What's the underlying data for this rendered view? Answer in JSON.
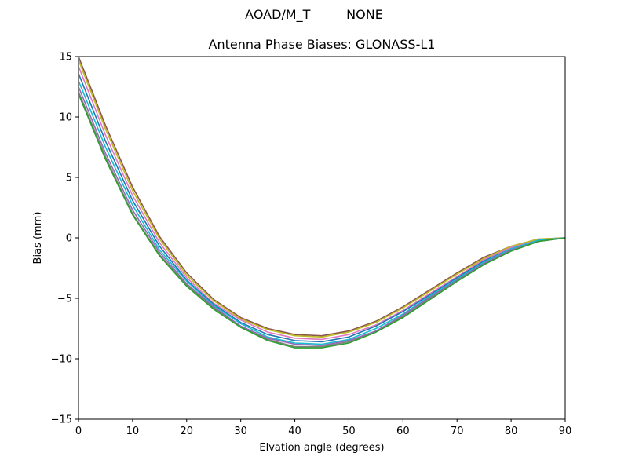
{
  "header": {
    "suptitle_left": "AOAD/M_T",
    "suptitle_right": "NONE",
    "title": "Antenna Phase Biases: GLONASS-L1"
  },
  "chart_data": {
    "type": "line",
    "title": "Antenna Phase Biases: GLONASS-L1",
    "xlabel": "Elvation angle (degrees)",
    "ylabel": "Bias (mm)",
    "xlim": [
      0,
      90
    ],
    "ylim": [
      -15,
      15
    ],
    "xticks": [
      0,
      10,
      20,
      30,
      40,
      50,
      60,
      70,
      80,
      90
    ],
    "yticks": [
      -15,
      -10,
      -5,
      0,
      5,
      10,
      15
    ],
    "ytick_labels": [
      "−15",
      "−10",
      "−5",
      "0",
      "5",
      "10",
      "15"
    ],
    "grid": false,
    "legend": "none",
    "x": [
      0,
      5,
      10,
      15,
      20,
      25,
      30,
      35,
      40,
      45,
      50,
      55,
      60,
      65,
      70,
      75,
      80,
      85,
      90
    ],
    "series": [
      {
        "color": "#8c564b",
        "values": [
          15.0,
          9.3,
          4.2,
          0.1,
          -2.9,
          -5.1,
          -6.6,
          -7.5,
          -8.0,
          -8.1,
          -7.7,
          -6.9,
          -5.7,
          -4.3,
          -2.9,
          -1.6,
          -0.7,
          -0.1,
          0.0
        ]
      },
      {
        "color": "#bcbd22",
        "values": [
          14.7,
          9.0,
          3.9,
          -0.1,
          -3.1,
          -5.2,
          -6.7,
          -7.6,
          -8.1,
          -8.2,
          -7.8,
          -7.0,
          -5.8,
          -4.4,
          -3.0,
          -1.7,
          -0.7,
          -0.1,
          0.0
        ]
      },
      {
        "color": "#e377c2",
        "values": [
          14.2,
          8.5,
          3.5,
          -0.4,
          -3.3,
          -5.4,
          -6.8,
          -7.8,
          -8.3,
          -8.4,
          -8.0,
          -7.2,
          -6.0,
          -4.6,
          -3.2,
          -1.8,
          -0.8,
          -0.2,
          0.0
        ]
      },
      {
        "color": "#1f77b4",
        "values": [
          13.6,
          8.0,
          3.1,
          -0.7,
          -3.5,
          -5.5,
          -7.0,
          -8.0,
          -8.5,
          -8.6,
          -8.2,
          -7.3,
          -6.1,
          -4.7,
          -3.3,
          -1.9,
          -0.9,
          -0.2,
          0.0
        ]
      },
      {
        "color": "#17becf",
        "values": [
          13.0,
          7.5,
          2.7,
          -1.0,
          -3.6,
          -5.6,
          -7.1,
          -8.2,
          -8.7,
          -8.8,
          -8.4,
          -7.5,
          -6.3,
          -4.8,
          -3.4,
          -2.0,
          -0.9,
          -0.2,
          0.0
        ]
      },
      {
        "color": "#9467bd",
        "values": [
          12.5,
          7.0,
          2.3,
          -1.2,
          -3.8,
          -5.7,
          -7.3,
          -8.3,
          -8.8,
          -8.9,
          -8.5,
          -7.7,
          -6.4,
          -4.9,
          -3.5,
          -2.1,
          -1.0,
          -0.3,
          0.0
        ]
      },
      {
        "color": "#7f7f7f",
        "values": [
          12.1,
          6.7,
          2.0,
          -1.4,
          -3.9,
          -5.8,
          -7.4,
          -8.4,
          -9.0,
          -9.0,
          -8.6,
          -7.8,
          -6.5,
          -5.0,
          -3.6,
          -2.2,
          -1.1,
          -0.3,
          0.0
        ]
      },
      {
        "color": "#2ca02c",
        "values": [
          11.9,
          6.5,
          1.9,
          -1.5,
          -4.0,
          -5.9,
          -7.4,
          -8.5,
          -9.1,
          -9.1,
          -8.7,
          -7.8,
          -6.6,
          -5.1,
          -3.6,
          -2.2,
          -1.1,
          -0.3,
          0.0
        ]
      }
    ]
  }
}
